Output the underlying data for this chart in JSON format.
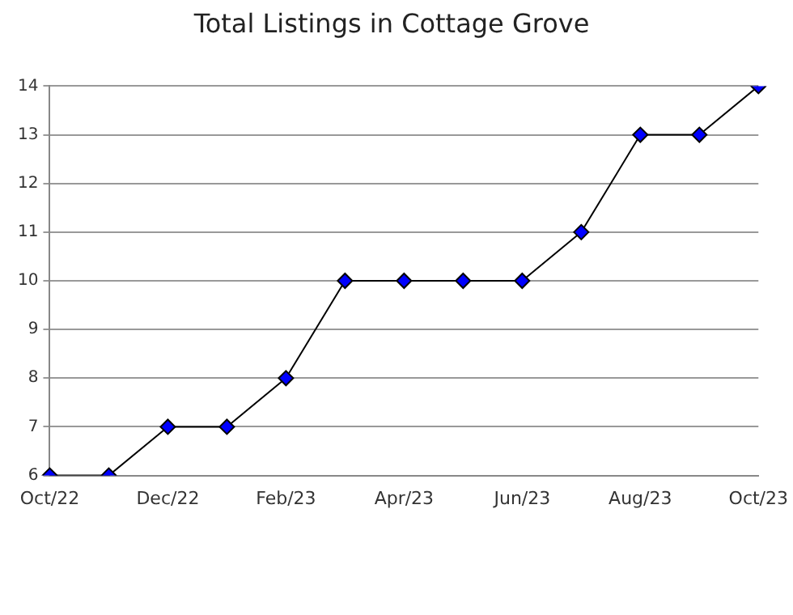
{
  "chart_data": {
    "type": "line",
    "title": "Total Listings in Cottage Grove",
    "categories": [
      "Oct/22",
      null,
      "Dec/22",
      null,
      "Feb/23",
      null,
      "Apr/23",
      null,
      "Jun/23",
      null,
      "Aug/23",
      null,
      "Oct/23"
    ],
    "series": [
      {
        "color": "#0000ff",
        "values": [
          6,
          6,
          7,
          7,
          8,
          10,
          10,
          10,
          10,
          11,
          13,
          13,
          14
        ]
      }
    ],
    "ylim": [
      6,
      14
    ],
    "yticks": [
      6,
      7,
      8,
      9,
      10,
      11,
      12,
      13,
      14
    ],
    "grid": "y",
    "legend": false,
    "marker": "diamond",
    "line_style": "solid"
  }
}
